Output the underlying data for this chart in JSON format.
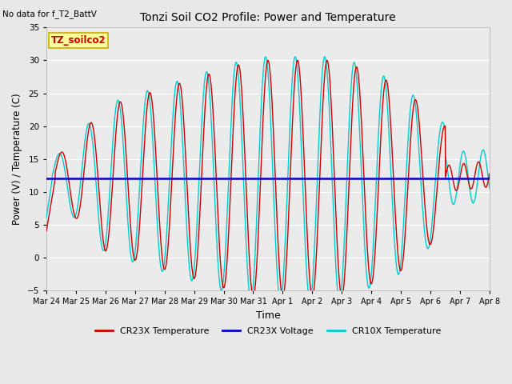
{
  "title": "Tonzi Soil CO2 Profile: Power and Temperature",
  "subtitle": "No data for f_T2_BattV",
  "ylabel": "Power (V) / Temperature (C)",
  "xlabel": "Time",
  "ylim": [
    -5,
    35
  ],
  "yticks": [
    -5,
    0,
    5,
    10,
    15,
    20,
    25,
    30,
    35
  ],
  "xtick_labels": [
    "Mar 24",
    "Mar 25",
    "Mar 26",
    "Mar 27",
    "Mar 28",
    "Mar 29",
    "Mar 30",
    "Mar 31",
    "Apr 1",
    "Apr 2",
    "Apr 3",
    "Apr 4",
    "Apr 5",
    "Apr 6",
    "Apr 7",
    "Apr 8"
  ],
  "voltage_level": 12.0,
  "bg_color": "#e8e8e8",
  "plot_bg_color": "#ebebeb",
  "cr23x_color": "#cc0000",
  "cr10x_color": "#00cccc",
  "voltage_color": "#0000cc",
  "legend_box_color": "#ffff99",
  "legend_box_border": "#ccaa00",
  "annotation_text": "TZ_soilco2"
}
